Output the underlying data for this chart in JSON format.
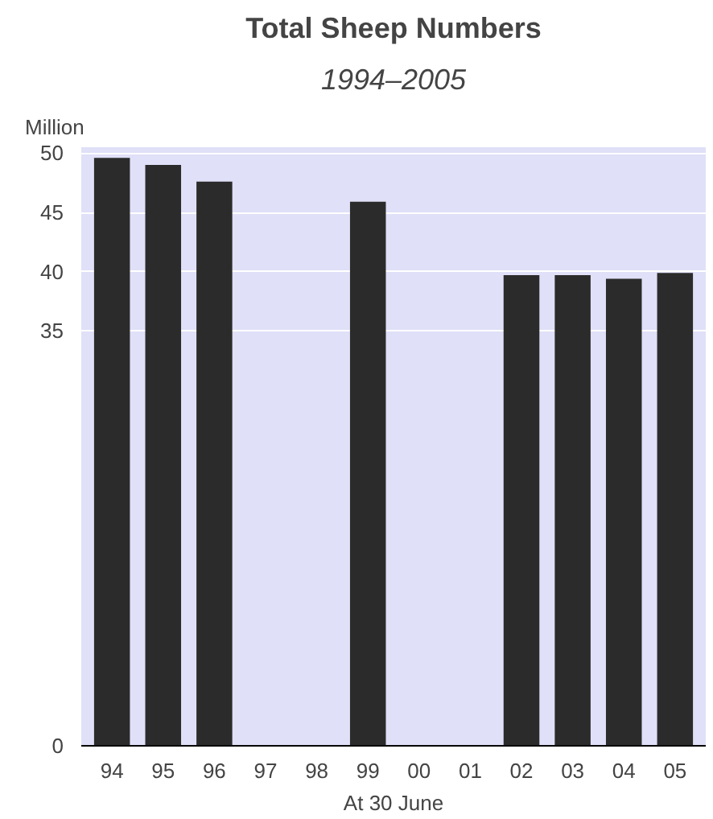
{
  "chart_data": {
    "type": "bar",
    "title": "Total Sheep Numbers",
    "subtitle": "1994–2005",
    "ylabel": "Million",
    "xlabel": "At 30 June",
    "categories": [
      "94",
      "95",
      "96",
      "97",
      "98",
      "99",
      "00",
      "01",
      "02",
      "03",
      "04",
      "05"
    ],
    "values": [
      49.6,
      49.0,
      47.6,
      null,
      null,
      45.9,
      null,
      null,
      39.7,
      39.7,
      39.4,
      39.9
    ],
    "color": "#2b2b2b",
    "ylim": [
      0,
      50.5
    ],
    "yticks": [
      0,
      35,
      40,
      45,
      50
    ],
    "grid": "y"
  }
}
